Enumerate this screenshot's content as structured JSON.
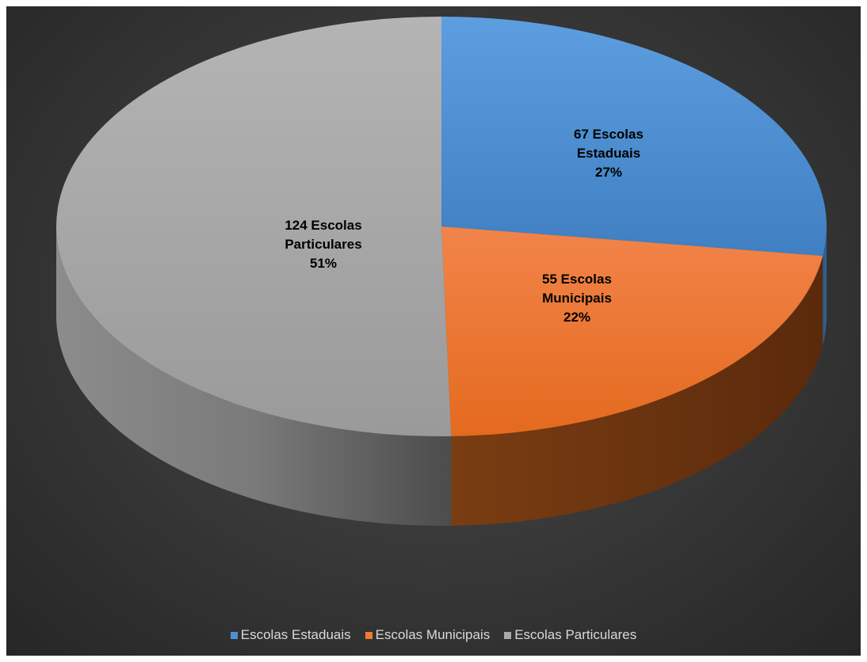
{
  "chart_data": {
    "type": "pie",
    "style": "3d",
    "slices": [
      {
        "name": "Escolas Estaduais",
        "value": 67,
        "percent": "27%",
        "label_lines": [
          "67 Escolas",
          "Estaduais",
          "27%"
        ],
        "color": "#4f8fd1",
        "side_color": "#2e5f8f"
      },
      {
        "name": "Escolas Municipais",
        "value": 55,
        "percent": "22%",
        "label_lines": [
          "55 Escolas",
          "Municipais",
          "22%"
        ],
        "color": "#ee7a32",
        "side_color": "#7a3d12"
      },
      {
        "name": "Escolas Particulares",
        "value": 124,
        "percent": "51%",
        "label_lines": [
          "124 Escolas",
          "Particulares",
          "51%"
        ],
        "color": "#a9a9a9",
        "side_color": "#6e6e6e"
      }
    ],
    "legend_position": "bottom"
  }
}
